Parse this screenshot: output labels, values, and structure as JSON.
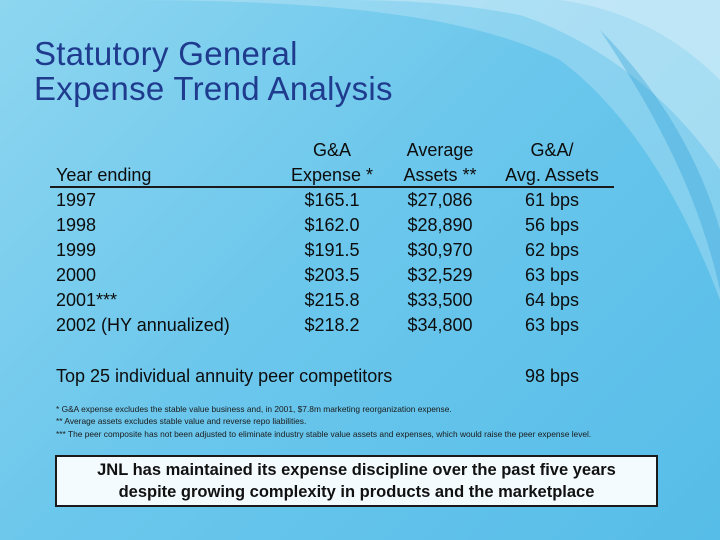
{
  "title": {
    "line1": "Statutory General",
    "line2": "Expense Trend Analysis"
  },
  "table": {
    "headers": {
      "col1": [
        "",
        "Year ending"
      ],
      "col2": [
        "G&A",
        "Expense *"
      ],
      "col3": [
        "Average",
        "Assets **"
      ],
      "col4": [
        "G&A/",
        "Avg. Assets"
      ]
    },
    "rows": [
      [
        "1997",
        "$165.1",
        "$27,086",
        "61 bps"
      ],
      [
        "1998",
        "$162.0",
        "$28,890",
        "56 bps"
      ],
      [
        "1999",
        "$191.5",
        "$30,970",
        "62 bps"
      ],
      [
        "2000",
        "$203.5",
        "$32,529",
        "63 bps"
      ],
      [
        "2001***",
        "$215.8",
        "$33,500",
        "64 bps"
      ],
      [
        "2002 (HY annualized)",
        "$218.2",
        "$34,800",
        "63 bps"
      ]
    ],
    "peer": {
      "label": "Top 25 individual annuity peer competitors",
      "value": "98 bps"
    }
  },
  "footnotes": [
    "*    G&A expense excludes the stable value business and, in 2001, $7.8m marketing reorganization expense.",
    "**  Average assets excludes stable value and reverse repo liabilities.",
    "*** The peer composite has not been adjusted to eliminate industry stable value assets and expenses, which would raise the peer expense level."
  ],
  "callout": {
    "line1": "JNL has maintained its expense discipline over the past five years",
    "line2": "despite growing complexity in products and the marketplace"
  },
  "colors": {
    "title": "#1f3b8e",
    "background": "#6cc7ec",
    "callout_background": "#f4fbfe"
  }
}
